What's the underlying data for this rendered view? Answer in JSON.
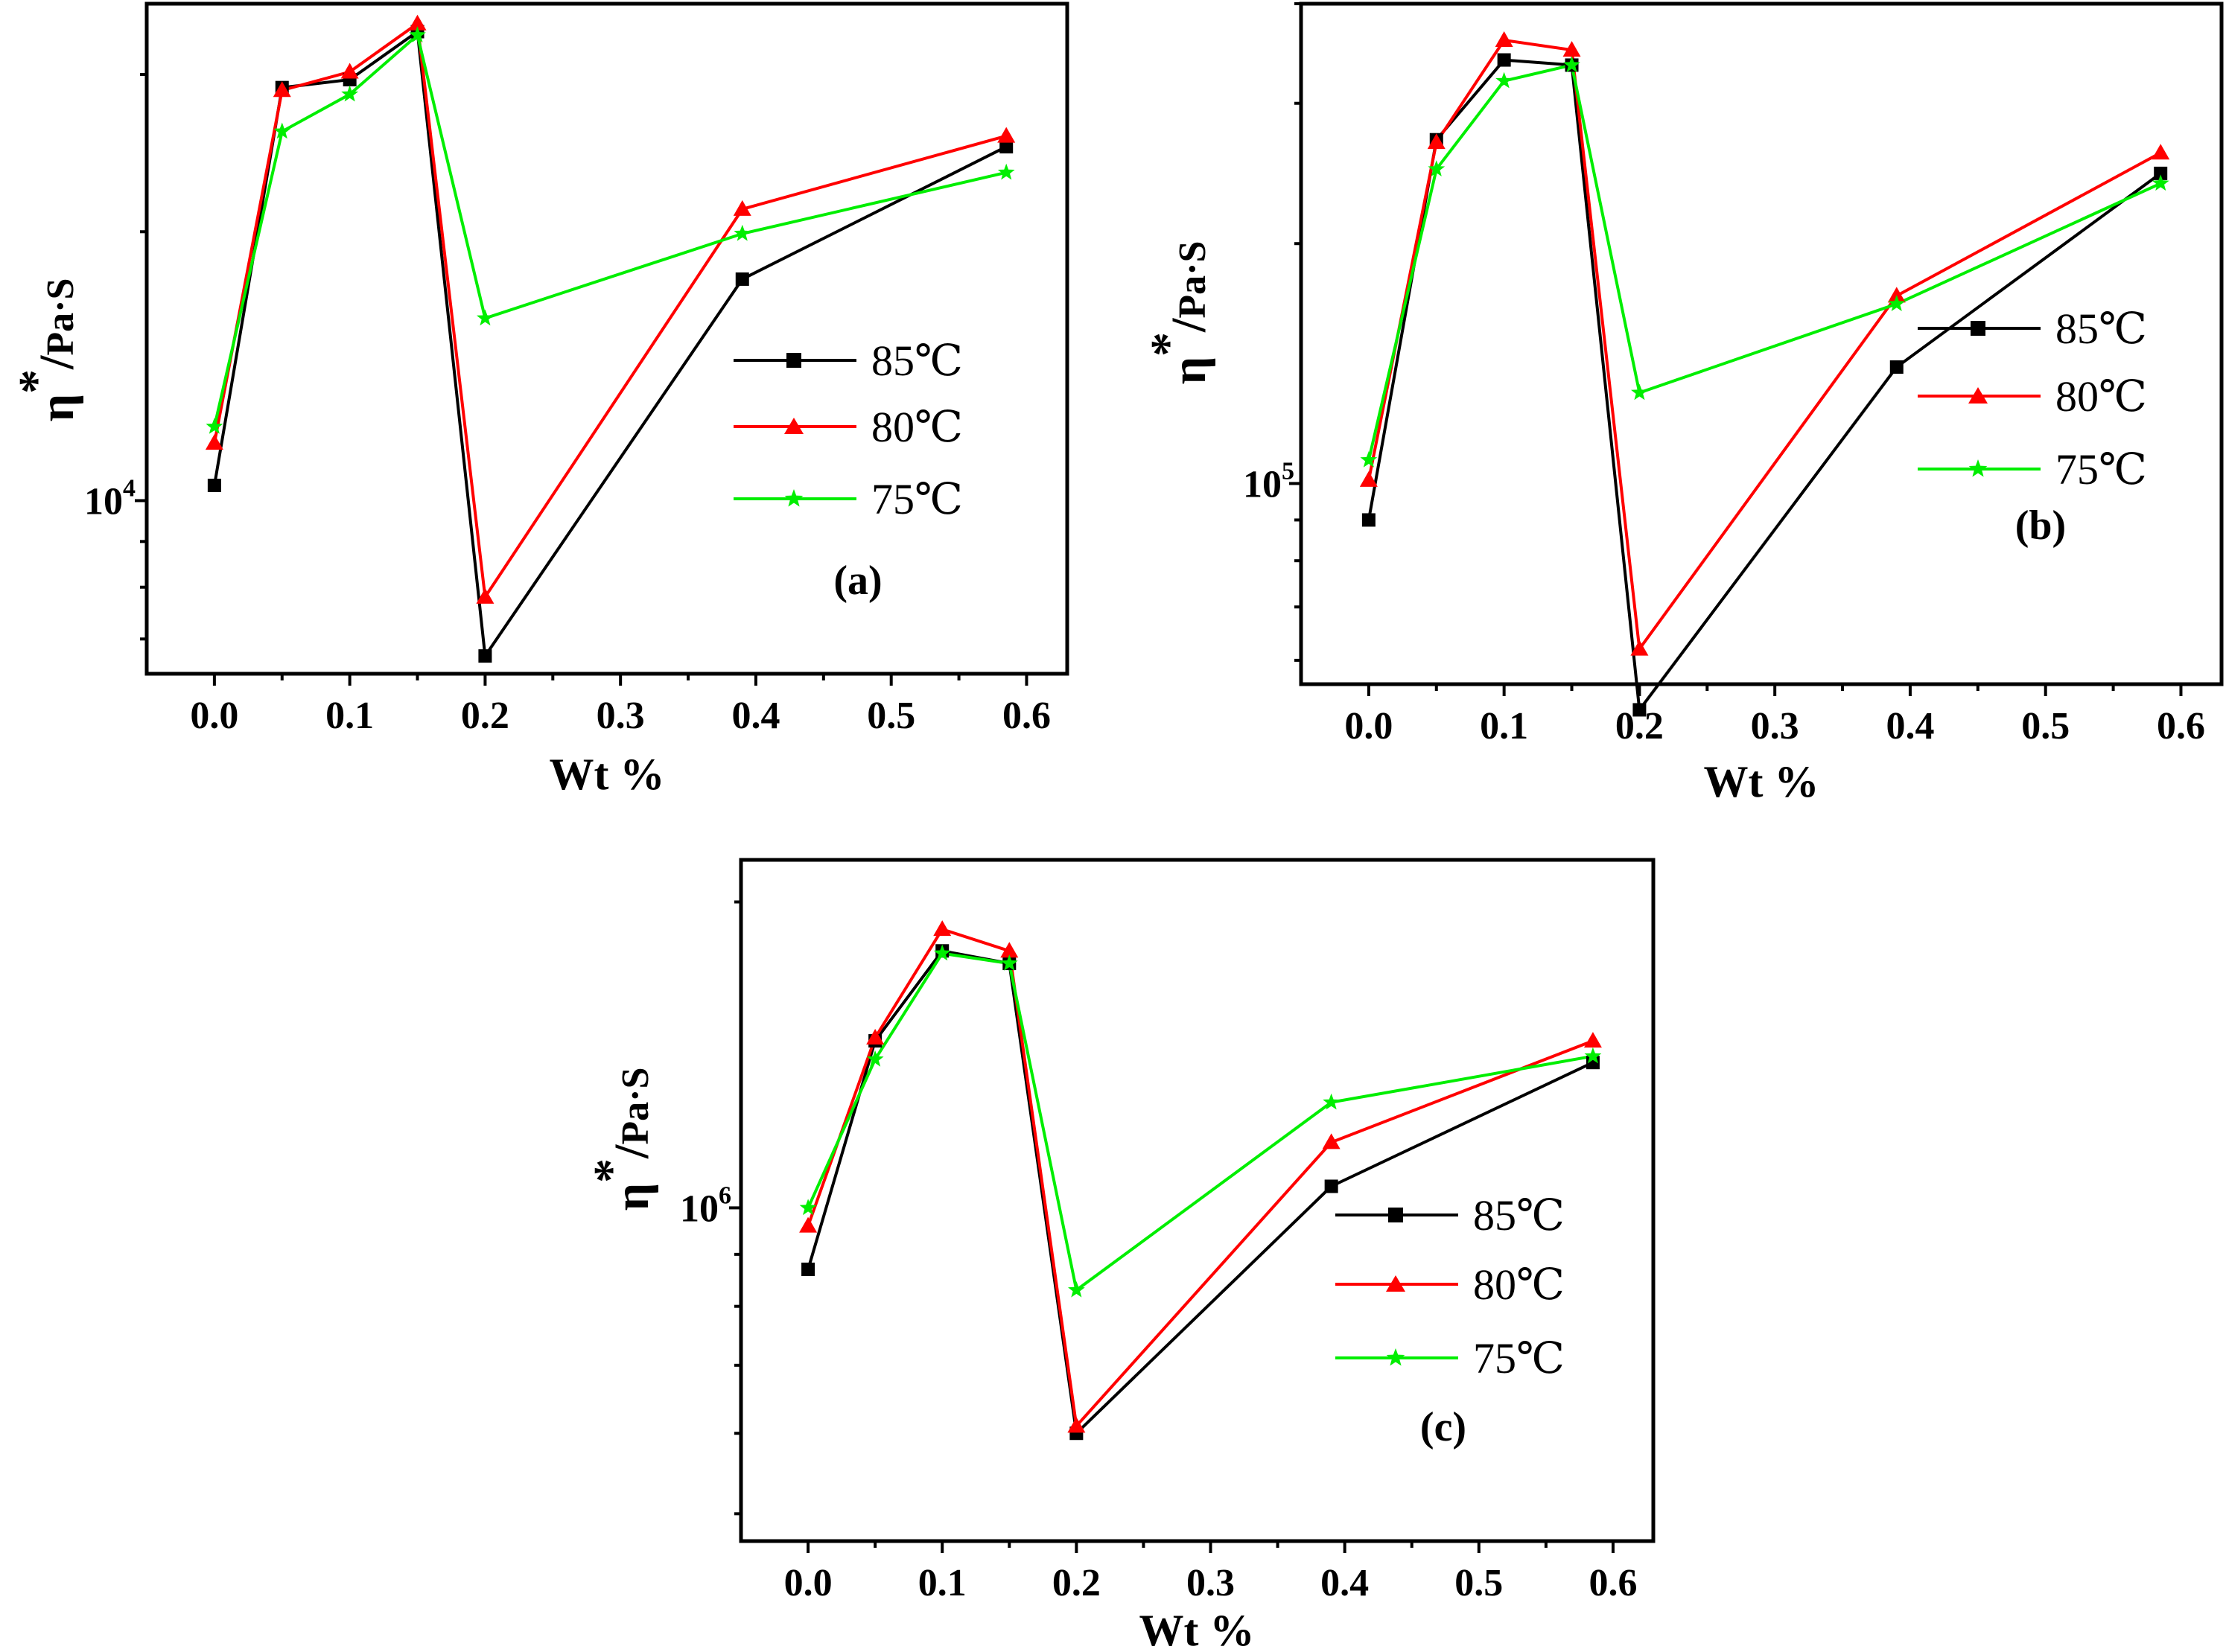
{
  "chart_data": [
    {
      "type": "line",
      "panel_label": "(a)",
      "xlabel": "Wt %",
      "ylabel": {
        "base": "η",
        "sup": "*",
        "unit": "Pa·S"
      },
      "yscale": "log",
      "xlim": [
        -0.05,
        0.63
      ],
      "ylim": [
        6400,
        36000
      ],
      "xticks": [
        "0.0",
        "0.1",
        "0.2",
        "0.3",
        "0.4",
        "0.5",
        "0.6"
      ],
      "ytick_label": {
        "base": "10",
        "exp": "4",
        "value": 10000
      },
      "x": [
        0.0,
        0.05,
        0.1,
        0.15,
        0.2,
        0.39,
        0.585
      ],
      "series": [
        {
          "name": "85℃",
          "color": "#000000",
          "marker": "square",
          "values": [
            10400,
            29000,
            29600,
            33500,
            6700,
            17700,
            24900
          ]
        },
        {
          "name": "80℃",
          "color": "#ff0000",
          "marker": "triangle",
          "values": [
            11600,
            28800,
            30200,
            34200,
            7800,
            21200,
            25600
          ]
        },
        {
          "name": "75℃",
          "color": "#00ee00",
          "marker": "star",
          "values": [
            12100,
            25900,
            28500,
            33200,
            16000,
            19900,
            23300
          ]
        }
      ]
    },
    {
      "type": "line",
      "panel_label": "(b)",
      "xlabel": "Wt %",
      "ylabel": {
        "base": "η",
        "sup": "*",
        "unit": "Pa·S"
      },
      "yscale": "log",
      "xlim": [
        -0.05,
        0.63
      ],
      "ylim": [
        56000,
        400000
      ],
      "xticks": [
        "0.0",
        "0.1",
        "0.2",
        "0.3",
        "0.4",
        "0.5",
        "0.6"
      ],
      "ytick_label": {
        "base": "10",
        "exp": "5",
        "value": 100000
      },
      "x": [
        0.0,
        0.05,
        0.1,
        0.15,
        0.2,
        0.39,
        0.585
      ],
      "series": [
        {
          "name": "85℃",
          "color": "#000000",
          "marker": "square",
          "values": [
            90000,
            270000,
            340000,
            335000,
            52000,
            140000,
            245000
          ]
        },
        {
          "name": "80℃",
          "color": "#ff0000",
          "marker": "triangle",
          "values": [
            101000,
            268000,
            360000,
            350000,
            62000,
            172000,
            260000
          ]
        },
        {
          "name": "75℃",
          "color": "#00ee00",
          "marker": "star",
          "values": [
            107000,
            248000,
            320000,
            335000,
            130000,
            168000,
            238000
          ]
        }
      ]
    },
    {
      "type": "line",
      "panel_label": "(c)",
      "xlabel": "Wt %",
      "ylabel": {
        "base": "η",
        "sup": "*",
        "unit": "Pa·S"
      },
      "yscale": "log",
      "xlim": [
        -0.05,
        0.63
      ],
      "ylim": [
        470000,
        2200000
      ],
      "xticks": [
        "0.0",
        "0.1",
        "0.2",
        "0.3",
        "0.4",
        "0.5",
        "0.6"
      ],
      "ytick_label": {
        "base": "10",
        "exp": "6",
        "value": 1000000
      },
      "x": [
        0.0,
        0.05,
        0.1,
        0.15,
        0.2,
        0.39,
        0.585
      ],
      "series": [
        {
          "name": "85℃",
          "color": "#000000",
          "marker": "square",
          "values": [
            870000,
            1460000,
            1790000,
            1740000,
            600000,
            1050000,
            1390000
          ]
        },
        {
          "name": "80℃",
          "color": "#ff0000",
          "marker": "triangle",
          "values": [
            960000,
            1470000,
            1880000,
            1790000,
            610000,
            1160000,
            1460000
          ]
        },
        {
          "name": "75℃",
          "color": "#00ee00",
          "marker": "star",
          "values": [
            1000000,
            1400000,
            1780000,
            1740000,
            830000,
            1270000,
            1410000
          ]
        }
      ]
    }
  ]
}
